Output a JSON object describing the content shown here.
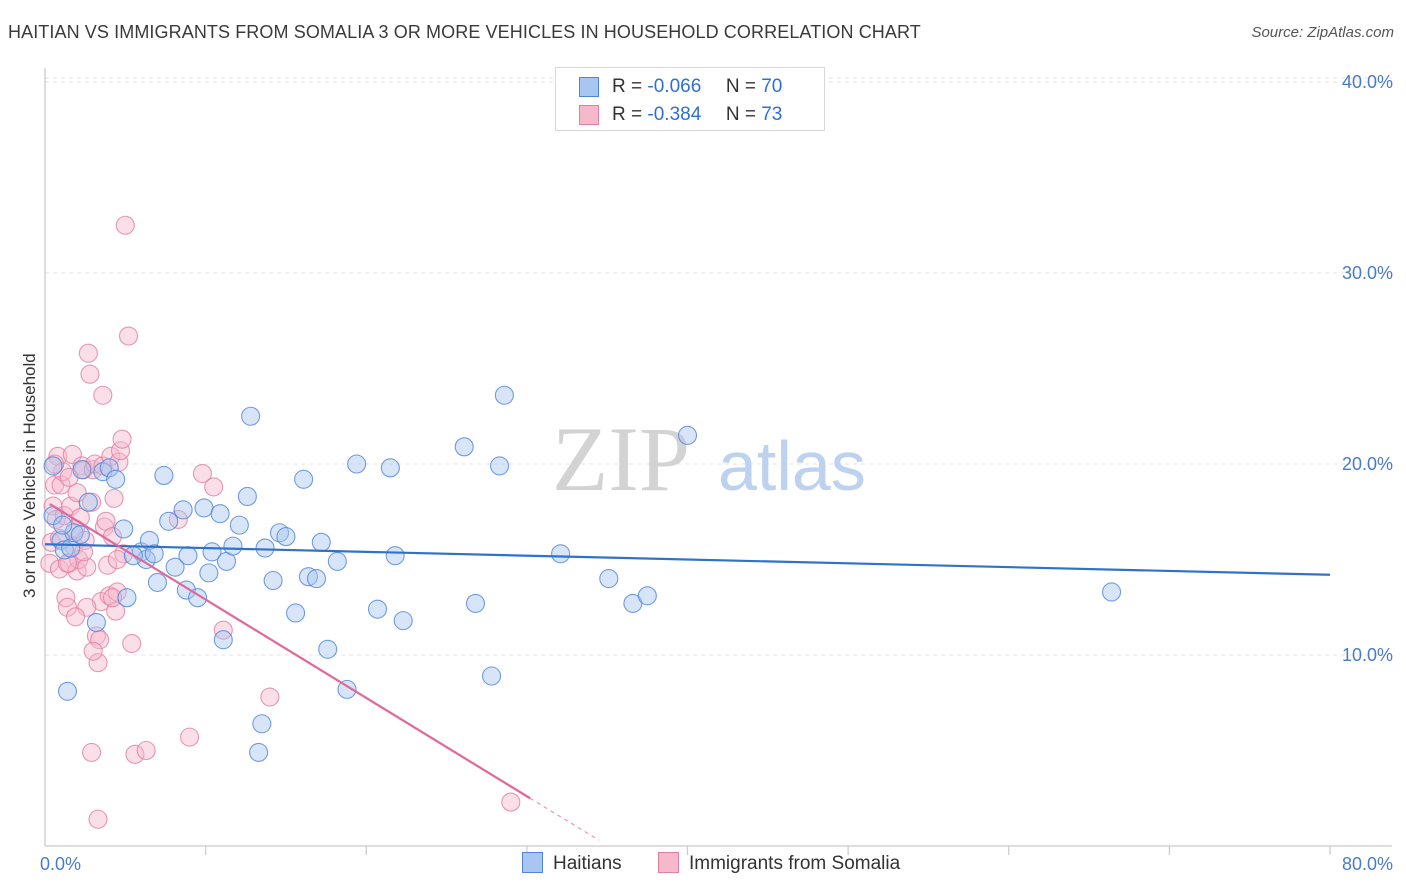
{
  "title": "HAITIAN VS IMMIGRANTS FROM SOMALIA 3 OR MORE VEHICLES IN HOUSEHOLD CORRELATION CHART",
  "source": "Source: ZipAtlas.com",
  "watermark": {
    "zip": "ZIP",
    "atlas": "atlas"
  },
  "legend": {
    "r_label": "R =",
    "n_label": "N =",
    "rows": [
      {
        "r": "-0.066",
        "n": "70"
      },
      {
        "r": "-0.384",
        "n": "73"
      }
    ]
  },
  "bottom_legend": [
    "Haitians",
    "Immigrants from Somalia"
  ],
  "colors": {
    "blue_fill": "#a9c6f0",
    "blue_stroke": "#4f86d8",
    "blue_line": "#2f72cc",
    "pink_fill": "#f6b8cb",
    "pink_stroke": "#e07fa0",
    "pink_line": "#e0689a",
    "axis_text": "#4a7bc8",
    "grid": "#e3e3e3"
  },
  "chart_data": {
    "type": "scatter",
    "title": "HAITIAN VS IMMIGRANTS FROM SOMALIA 3 OR MORE VEHICLES IN HOUSEHOLD CORRELATION CHART",
    "xlabel": "",
    "ylabel": "3 or more Vehicles in Household",
    "xlim": [
      0,
      80
    ],
    "ylim": [
      0,
      41
    ],
    "x_tick_labels": [
      "0.0%",
      "80.0%"
    ],
    "y_ticks": [
      10,
      20,
      30,
      40
    ],
    "y_tick_labels": [
      "10.0%",
      "20.0%",
      "30.0%",
      "40.0%"
    ],
    "series": [
      {
        "name": "Haitians",
        "R": -0.066,
        "N": 70,
        "trend": {
          "x": [
            0,
            80
          ],
          "y": [
            15.8,
            14.2
          ]
        },
        "points": [
          [
            0.5,
            17.3
          ],
          [
            0.5,
            19.9
          ],
          [
            1.0,
            16.0
          ],
          [
            1.2,
            15.5
          ],
          [
            1.4,
            8.1
          ],
          [
            1.6,
            15.6
          ],
          [
            1.8,
            16.4
          ],
          [
            2.3,
            19.7
          ],
          [
            2.7,
            18.0
          ],
          [
            3.2,
            11.7
          ],
          [
            3.6,
            19.6
          ],
          [
            4.0,
            19.8
          ],
          [
            4.4,
            19.2
          ],
          [
            4.9,
            16.6
          ],
          [
            5.1,
            13.0
          ],
          [
            6.0,
            15.4
          ],
          [
            6.3,
            15.0
          ],
          [
            6.5,
            16.0
          ],
          [
            6.8,
            15.3
          ],
          [
            7.0,
            13.8
          ],
          [
            7.4,
            19.4
          ],
          [
            7.7,
            17.0
          ],
          [
            8.1,
            14.6
          ],
          [
            8.6,
            17.6
          ],
          [
            8.8,
            13.4
          ],
          [
            8.9,
            15.2
          ],
          [
            9.5,
            13.0
          ],
          [
            9.9,
            17.7
          ],
          [
            10.2,
            14.3
          ],
          [
            10.4,
            15.4
          ],
          [
            10.9,
            17.4
          ],
          [
            11.1,
            10.8
          ],
          [
            11.3,
            14.9
          ],
          [
            11.7,
            15.7
          ],
          [
            12.1,
            16.8
          ],
          [
            12.6,
            18.3
          ],
          [
            12.8,
            22.5
          ],
          [
            13.3,
            4.9
          ],
          [
            13.5,
            6.4
          ],
          [
            13.7,
            15.6
          ],
          [
            14.2,
            13.9
          ],
          [
            14.6,
            16.4
          ],
          [
            15.0,
            16.2
          ],
          [
            15.6,
            12.2
          ],
          [
            16.1,
            19.2
          ],
          [
            16.4,
            14.1
          ],
          [
            16.9,
            14.0
          ],
          [
            17.2,
            15.9
          ],
          [
            17.6,
            10.3
          ],
          [
            18.2,
            14.9
          ],
          [
            18.8,
            8.2
          ],
          [
            19.4,
            20.0
          ],
          [
            20.7,
            12.4
          ],
          [
            21.5,
            19.8
          ],
          [
            21.8,
            15.2
          ],
          [
            22.3,
            11.8
          ],
          [
            26.1,
            20.9
          ],
          [
            26.8,
            12.7
          ],
          [
            27.8,
            8.9
          ],
          [
            28.3,
            19.9
          ],
          [
            28.6,
            23.6
          ],
          [
            32.1,
            15.3
          ],
          [
            35.1,
            14.0
          ],
          [
            36.6,
            12.7
          ],
          [
            37.5,
            13.1
          ],
          [
            40.0,
            21.5
          ],
          [
            66.4,
            13.3
          ],
          [
            2.2,
            16.3
          ],
          [
            5.5,
            15.2
          ],
          [
            1.1,
            16.8
          ]
        ]
      },
      {
        "name": "Immigrants from Somalia",
        "R": -0.384,
        "N": 73,
        "trend": {
          "x": [
            0.3,
            30.2
          ],
          "y": [
            17.9,
            2.5
          ]
        },
        "trend_dashed": {
          "x": [
            30.2,
            34.5
          ],
          "y": [
            2.5,
            0.3
          ]
        },
        "points": [
          [
            0.3,
            14.8
          ],
          [
            0.4,
            15.9
          ],
          [
            0.5,
            17.8
          ],
          [
            0.6,
            18.9
          ],
          [
            0.7,
            17.1
          ],
          [
            0.8,
            20.4
          ],
          [
            0.9,
            14.5
          ],
          [
            1.0,
            18.9
          ],
          [
            1.1,
            19.6
          ],
          [
            1.2,
            17.3
          ],
          [
            1.3,
            13.0
          ],
          [
            1.4,
            12.5
          ],
          [
            1.5,
            14.8
          ],
          [
            1.6,
            17.8
          ],
          [
            1.7,
            20.5
          ],
          [
            1.8,
            15.7
          ],
          [
            1.9,
            16.6
          ],
          [
            2.0,
            14.4
          ],
          [
            2.1,
            15.0
          ],
          [
            2.2,
            17.2
          ],
          [
            2.3,
            19.9
          ],
          [
            2.4,
            19.7
          ],
          [
            2.5,
            16.0
          ],
          [
            2.6,
            14.6
          ],
          [
            2.7,
            25.8
          ],
          [
            2.8,
            24.7
          ],
          [
            2.9,
            18.0
          ],
          [
            3.0,
            19.7
          ],
          [
            3.1,
            20.0
          ],
          [
            3.2,
            11.0
          ],
          [
            3.3,
            9.6
          ],
          [
            3.4,
            10.8
          ],
          [
            3.5,
            12.8
          ],
          [
            3.6,
            19.9
          ],
          [
            3.7,
            16.7
          ],
          [
            3.8,
            17.0
          ],
          [
            3.9,
            14.7
          ],
          [
            4.0,
            13.1
          ],
          [
            4.1,
            20.4
          ],
          [
            4.2,
            16.2
          ],
          [
            4.3,
            18.2
          ],
          [
            4.4,
            12.3
          ],
          [
            4.5,
            13.3
          ],
          [
            4.6,
            20.1
          ],
          [
            4.7,
            20.7
          ],
          [
            4.8,
            21.3
          ],
          [
            4.9,
            15.3
          ],
          [
            5.0,
            32.5
          ],
          [
            5.2,
            26.7
          ],
          [
            5.4,
            10.6
          ],
          [
            3.6,
            23.6
          ],
          [
            2.9,
            4.9
          ],
          [
            3.3,
            1.4
          ],
          [
            2.6,
            12.5
          ],
          [
            4.2,
            13.0
          ],
          [
            5.6,
            4.8
          ],
          [
            6.3,
            5.0
          ],
          [
            8.3,
            17.1
          ],
          [
            9.0,
            5.7
          ],
          [
            9.8,
            19.5
          ],
          [
            10.5,
            18.8
          ],
          [
            11.1,
            11.3
          ],
          [
            14.0,
            7.8
          ],
          [
            29.0,
            2.3
          ],
          [
            1.4,
            14.8
          ],
          [
            0.9,
            16.1
          ],
          [
            2.0,
            18.5
          ],
          [
            1.5,
            19.3
          ],
          [
            3.0,
            10.2
          ],
          [
            4.5,
            15.0
          ],
          [
            0.6,
            20.0
          ],
          [
            1.9,
            12.0
          ],
          [
            2.4,
            15.4
          ]
        ]
      }
    ]
  }
}
